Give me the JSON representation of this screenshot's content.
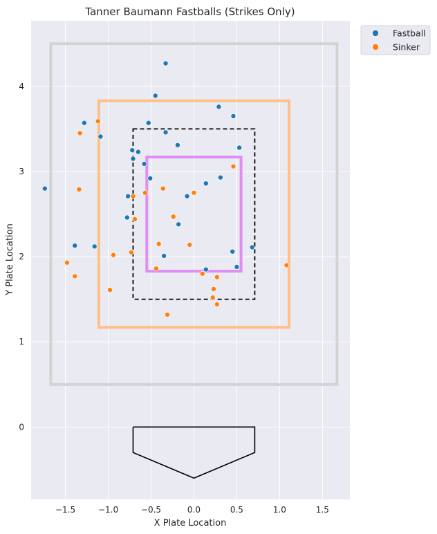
{
  "chart_data": {
    "type": "scatter",
    "title": "Tanner Baumann Fastballs (Strikes Only)",
    "xlabel": "X Plate Location",
    "ylabel": "Y Plate Location",
    "xlim": [
      -1.9,
      1.82
    ],
    "ylim": [
      -0.85,
      4.77
    ],
    "x_ticks": [
      -1.5,
      -1.0,
      -0.5,
      0.0,
      0.5,
      1.0,
      1.5
    ],
    "x_tick_labels": [
      "−1.5",
      "−1.0",
      "−0.5",
      "0.0",
      "0.5",
      "1.0",
      "1.5"
    ],
    "y_ticks": [
      0,
      1,
      2,
      3,
      4
    ],
    "y_tick_labels": [
      "0",
      "1",
      "2",
      "3",
      "4"
    ],
    "grid": true,
    "legend_placement": "outside top-right",
    "colors": {
      "Fastball": "#1f77b4",
      "Sinker": "#ff7f0e",
      "background": "#eaeaf2",
      "grid": "#ffffff",
      "outer_zone": "#d3d3d3",
      "shadow_zone": "#ffbf87",
      "heart_zone": "#e08ef5",
      "strike_zone": "#000000",
      "home_plate": "#000000"
    },
    "zones": {
      "outer": {
        "x": [
          -1.67,
          1.67
        ],
        "y": [
          0.5,
          4.5
        ]
      },
      "shadow": {
        "x": [
          -1.11,
          1.11
        ],
        "y": [
          1.17,
          3.83
        ]
      },
      "strike_zone": {
        "x": [
          -0.71,
          0.71
        ],
        "y": [
          1.5,
          3.5
        ]
      },
      "heart": {
        "x": [
          -0.55,
          0.55
        ],
        "y": [
          1.83,
          3.17
        ]
      }
    },
    "home_plate": [
      [
        -0.71,
        0
      ],
      [
        0.71,
        0
      ],
      [
        0.71,
        -0.3
      ],
      [
        0,
        -0.6
      ],
      [
        -0.71,
        -0.3
      ],
      [
        -0.71,
        0
      ]
    ],
    "series": [
      {
        "name": "Fastball",
        "points": [
          [
            -0.33,
            4.27
          ],
          [
            -0.45,
            3.89
          ],
          [
            0.29,
            3.76
          ],
          [
            0.46,
            3.65
          ],
          [
            -1.28,
            3.57
          ],
          [
            -0.53,
            3.57
          ],
          [
            -0.33,
            3.46
          ],
          [
            -1.09,
            3.41
          ],
          [
            -0.19,
            3.31
          ],
          [
            0.53,
            3.28
          ],
          [
            -0.72,
            3.25
          ],
          [
            -0.65,
            3.23
          ],
          [
            -0.71,
            3.15
          ],
          [
            -0.58,
            3.09
          ],
          [
            -0.51,
            2.92
          ],
          [
            0.31,
            2.93
          ],
          [
            0.14,
            2.86
          ],
          [
            -1.74,
            2.8
          ],
          [
            -0.08,
            2.71
          ],
          [
            -0.77,
            2.71
          ],
          [
            -0.78,
            2.46
          ],
          [
            -0.18,
            2.38
          ],
          [
            -1.39,
            2.13
          ],
          [
            -1.16,
            2.12
          ],
          [
            0.68,
            2.11
          ],
          [
            0.45,
            2.06
          ],
          [
            -0.35,
            2.01
          ],
          [
            0.5,
            1.88
          ],
          [
            0.14,
            1.85
          ]
        ]
      },
      {
        "name": "Sinker",
        "points": [
          [
            -1.12,
            3.59
          ],
          [
            -1.33,
            3.45
          ],
          [
            0.46,
            3.06
          ],
          [
            -1.34,
            2.79
          ],
          [
            -0.36,
            2.8
          ],
          [
            0.0,
            2.75
          ],
          [
            -0.57,
            2.75
          ],
          [
            -0.71,
            2.71
          ],
          [
            -0.24,
            2.47
          ],
          [
            -0.69,
            2.44
          ],
          [
            -0.41,
            2.15
          ],
          [
            -0.05,
            2.14
          ],
          [
            -0.73,
            2.05
          ],
          [
            -0.94,
            2.02
          ],
          [
            -1.48,
            1.93
          ],
          [
            1.08,
            1.9
          ],
          [
            -0.44,
            1.86
          ],
          [
            0.1,
            1.8
          ],
          [
            -1.39,
            1.77
          ],
          [
            0.27,
            1.76
          ],
          [
            -0.98,
            1.61
          ],
          [
            0.23,
            1.62
          ],
          [
            0.22,
            1.52
          ],
          [
            0.27,
            1.44
          ],
          [
            -0.31,
            1.32
          ]
        ]
      }
    ]
  }
}
